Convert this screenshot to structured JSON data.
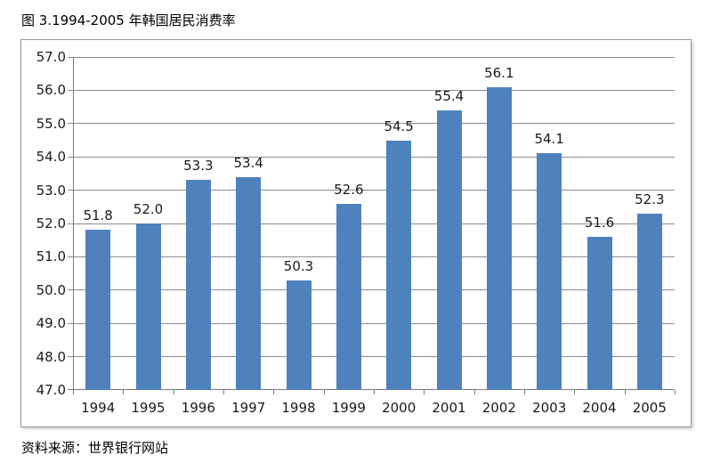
{
  "page": {
    "title": "图 3.1994-2005 年韩国居民消费率",
    "source": "资料来源：世界银行网站"
  },
  "chart_data": {
    "type": "bar",
    "title": "图 3.1994-2005 年韩国居民消费率",
    "categories": [
      "1994",
      "1995",
      "1996",
      "1997",
      "1998",
      "1999",
      "2000",
      "2001",
      "2002",
      "2003",
      "2004",
      "2005"
    ],
    "values": [
      51.8,
      52.0,
      53.3,
      53.4,
      50.3,
      52.6,
      54.5,
      55.4,
      56.1,
      54.1,
      51.6,
      52.3
    ],
    "data_labels": [
      "51.8",
      "52.0",
      "53.3",
      "53.4",
      "50.3",
      "52.6",
      "54.5",
      "55.4",
      "56.1",
      "54.1",
      "51.6",
      "52.3"
    ],
    "y_tick_labels": [
      "57.0",
      "56.0",
      "55.0",
      "54.0",
      "53.0",
      "52.0",
      "51.0",
      "50.0",
      "49.0",
      "48.0",
      "47.0"
    ],
    "ylim": [
      47.0,
      57.0
    ],
    "y_step": 1.0,
    "xlabel": "",
    "ylabel": "",
    "grid": true,
    "legend": "none",
    "data_labels_shown": true,
    "colors": {
      "bar": "#4f81bd",
      "gridline": "#8c8c8c",
      "axis": "#7a7a7a",
      "text": "#1a1a1a"
    },
    "source": "资料来源：世界银行网站"
  }
}
